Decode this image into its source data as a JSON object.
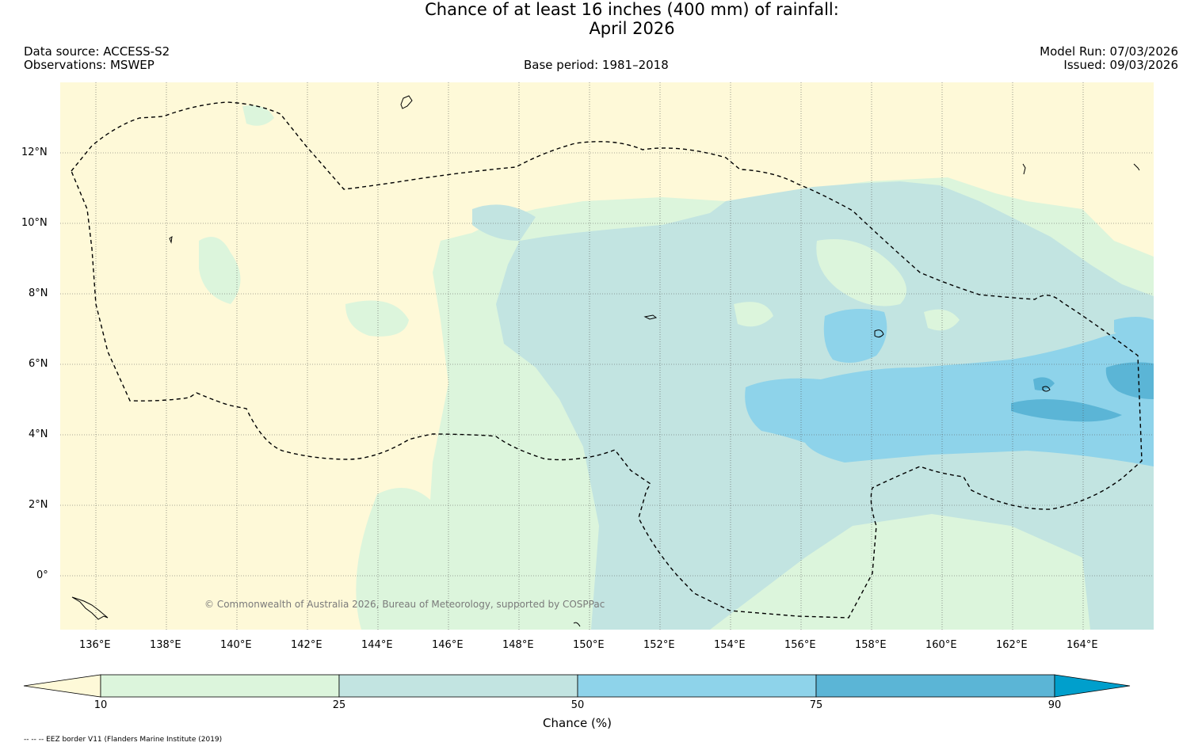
{
  "title": {
    "line1": "Chance of at least 16 inches (400  mm) of rainfall:",
    "line2": "April 2026"
  },
  "meta": {
    "data_source": "Data source: ACCESS-S2",
    "observations": "Observations: MSWEP",
    "base_period": "Base period: 1981–2018",
    "model_run": "Model Run: 07/03/2026",
    "issued": "Issued: 09/03/2026"
  },
  "map": {
    "longitude_ticks": [
      "136°E",
      "138°E",
      "140°E",
      "142°E",
      "144°E",
      "146°E",
      "148°E",
      "150°E",
      "152°E",
      "154°E",
      "156°E",
      "158°E",
      "160°E",
      "162°E",
      "164°E"
    ],
    "latitude_ticks": [
      "12°N",
      "10°N",
      "8°N",
      "6°N",
      "4°N",
      "2°N",
      "0°"
    ],
    "copyright": "© Commonwealth of Australia 2026, Bureau of Meteorology, supported by COSPPac",
    "colors": {
      "below_10": "#fef9d8",
      "10_25": "#dcf5dc",
      "25_50": "#c2e4e1",
      "50_75": "#8ed3ea",
      "75_90": "#5bb5d6",
      "above_90": "#009fcc"
    }
  },
  "colorbar": {
    "labels": [
      "10",
      "25",
      "50",
      "75",
      "90"
    ],
    "title": "Chance (%)"
  },
  "footnote": "-- -- -- EEZ border V11 (Flanders Marine Institute (2019)"
}
